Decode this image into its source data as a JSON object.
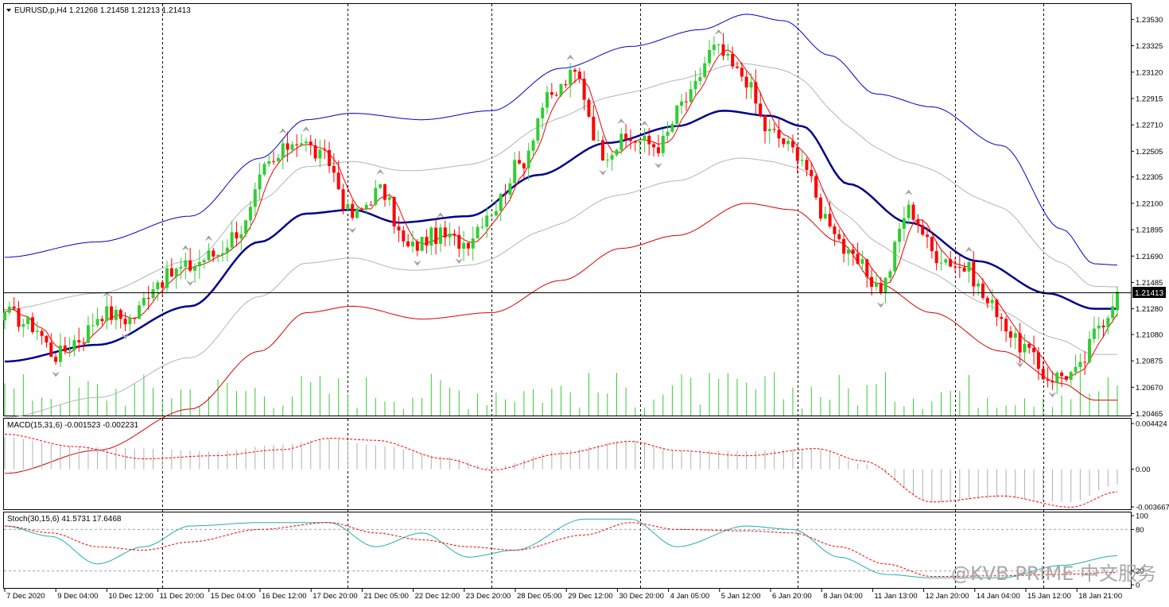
{
  "window": {
    "symbol_header": "EURUSD,p,H4  1.21268 1.21458 1.21213 1.21413",
    "macd_header": "MACD(15,31,6) -0.001523 -0.002231",
    "stoch_header": "Stoch(30,15,6) 41.5731 17.6468",
    "current_price_label": "1.21413",
    "watermark": "@KVB PRIME 中文服务"
  },
  "colors": {
    "bull_candle": "#32cd32",
    "bear_candle": "#ff0000",
    "ma_main": "#00008b",
    "band_upper": "#0000cd",
    "band_lower": "#dd0000",
    "band_inner": "#b4b4b4",
    "fast_ma": "#ee0000",
    "macd_signal": "#ff0000",
    "stoch_main": "#20b2aa",
    "stoch_signal": "#ff0000",
    "grid": "#000000"
  },
  "chart_data": [
    {
      "type": "candlestick",
      "symbol": "EURUSD,p",
      "timeframe": "H4",
      "last_bar": {
        "open": 1.21268,
        "high": 1.21458,
        "low": 1.21213,
        "close": 1.21413
      },
      "ylim": [
        1.2045,
        1.2365
      ],
      "y_ticks": [
        "1.23530",
        "1.23325",
        "1.23120",
        "1.22915",
        "1.22710",
        "1.22505",
        "1.22305",
        "1.22100",
        "1.21895",
        "1.21690",
        "1.21485",
        "1.21280",
        "1.21080",
        "1.20875",
        "1.20670",
        "1.20465"
      ],
      "x_labels": [
        "7 Dec 2020",
        "9 Dec 04:00",
        "10 Dec 12:00",
        "11 Dec 20:00",
        "15 Dec 04:00",
        "16 Dec 12:00",
        "17 Dec 20:00",
        "21 Dec 05:00",
        "22 Dec 12:00",
        "23 Dec 20:00",
        "28 Dec 05:00",
        "29 Dec 12:00",
        "30 Dec 20:00",
        "4 Jan 05:00",
        "5 Jan 12:00",
        "6 Jan 20:00",
        "8 Jan 04:00",
        "11 Jan 13:00",
        "12 Jan 20:00",
        "14 Jan 04:00",
        "15 Jan 12:00",
        "18 Jan 21:00"
      ],
      "close_anchors": [
        [
          0,
          1.2125
        ],
        [
          6,
          1.2115
        ],
        [
          11,
          1.2092
        ],
        [
          16,
          1.2105
        ],
        [
          21,
          1.2125
        ],
        [
          27,
          1.212
        ],
        [
          33,
          1.215
        ],
        [
          39,
          1.216
        ],
        [
          45,
          1.217
        ],
        [
          51,
          1.219
        ],
        [
          57,
          1.224
        ],
        [
          63,
          1.226
        ],
        [
          69,
          1.2245
        ],
        [
          75,
          1.22
        ],
        [
          81,
          1.222
        ],
        [
          87,
          1.2175
        ],
        [
          93,
          1.2185
        ],
        [
          99,
          1.218
        ],
        [
          105,
          1.2205
        ],
        [
          111,
          1.224
        ],
        [
          117,
          1.229
        ],
        [
          123,
          1.231
        ],
        [
          129,
          1.225
        ],
        [
          135,
          1.226
        ],
        [
          141,
          1.2255
        ],
        [
          147,
          1.229
        ],
        [
          153,
          1.233
        ],
        [
          159,
          1.231
        ],
        [
          165,
          1.2265
        ],
        [
          171,
          1.225
        ],
        [
          177,
          1.22
        ],
        [
          183,
          1.2165
        ],
        [
          189,
          1.2145
        ],
        [
          195,
          1.2205
        ],
        [
          201,
          1.217
        ],
        [
          207,
          1.216
        ],
        [
          213,
          1.213
        ],
        [
          219,
          1.21
        ],
        [
          225,
          1.2075
        ],
        [
          231,
          1.2078
        ],
        [
          237,
          1.212
        ],
        [
          240,
          1.21413
        ]
      ],
      "ma_main_anchors": [
        [
          0,
          1.2087
        ],
        [
          20,
          1.21
        ],
        [
          40,
          1.213
        ],
        [
          55,
          1.218
        ],
        [
          65,
          1.2202
        ],
        [
          75,
          1.2205
        ],
        [
          85,
          1.2195
        ],
        [
          100,
          1.22
        ],
        [
          115,
          1.2232
        ],
        [
          130,
          1.2257
        ],
        [
          145,
          1.227
        ],
        [
          155,
          1.2282
        ],
        [
          165,
          1.2278
        ],
        [
          172,
          1.227
        ],
        [
          182,
          1.2225
        ],
        [
          195,
          1.2195
        ],
        [
          210,
          1.2165
        ],
        [
          225,
          1.214
        ],
        [
          235,
          1.2128
        ],
        [
          240,
          1.2128
        ]
      ],
      "band_upper_anchors": [
        [
          0,
          1.2168
        ],
        [
          20,
          1.218
        ],
        [
          40,
          1.22
        ],
        [
          55,
          1.2245
        ],
        [
          65,
          1.2275
        ],
        [
          75,
          1.228
        ],
        [
          90,
          1.2275
        ],
        [
          105,
          1.2282
        ],
        [
          120,
          1.2315
        ],
        [
          135,
          1.2332
        ],
        [
          150,
          1.2345
        ],
        [
          160,
          1.2357
        ],
        [
          168,
          1.2352
        ],
        [
          178,
          1.2325
        ],
        [
          188,
          1.2295
        ],
        [
          200,
          1.2285
        ],
        [
          215,
          1.2255
        ],
        [
          228,
          1.219
        ],
        [
          235,
          1.2163
        ],
        [
          240,
          1.2162
        ]
      ],
      "band_lower_anchors": [
        [
          0,
          1.2
        ],
        [
          20,
          1.2018
        ],
        [
          40,
          1.205
        ],
        [
          55,
          1.2095
        ],
        [
          65,
          1.2125
        ],
        [
          75,
          1.213
        ],
        [
          90,
          1.212
        ],
        [
          105,
          1.2125
        ],
        [
          120,
          1.215
        ],
        [
          133,
          1.2175
        ],
        [
          145,
          1.2185
        ],
        [
          160,
          1.221
        ],
        [
          170,
          1.2205
        ],
        [
          180,
          1.218
        ],
        [
          188,
          1.2148
        ],
        [
          200,
          1.2125
        ],
        [
          215,
          1.2095
        ],
        [
          228,
          1.207
        ],
        [
          235,
          1.2057
        ],
        [
          240,
          1.2057
        ]
      ],
      "fast_ma_offset": 0.0
    },
    {
      "type": "histogram",
      "indicator": "MACD",
      "params": "15,31,6",
      "main": -0.001523,
      "signal": -0.002231,
      "ylim": [
        -0.0039,
        0.0049
      ],
      "y_ticks": [
        "0.004424",
        "0.00",
        "-0.003667"
      ],
      "main_anchors": [
        [
          0,
          0.0031
        ],
        [
          15,
          0.0022
        ],
        [
          30,
          0.002
        ],
        [
          45,
          0.0017
        ],
        [
          60,
          0.0024
        ],
        [
          70,
          0.003
        ],
        [
          80,
          0.0023
        ],
        [
          95,
          0.0012
        ],
        [
          105,
          0.0002
        ],
        [
          120,
          0.0018
        ],
        [
          135,
          0.0028
        ],
        [
          145,
          0.0018
        ],
        [
          160,
          0.0018
        ],
        [
          175,
          0.002
        ],
        [
          185,
          0.0005
        ],
        [
          200,
          -0.0032
        ],
        [
          215,
          -0.0028
        ],
        [
          230,
          -0.0032
        ],
        [
          240,
          -0.0015
        ]
      ],
      "signal_anchors": [
        [
          0,
          0.0034
        ],
        [
          15,
          0.0022
        ],
        [
          30,
          0.001
        ],
        [
          45,
          0.0013
        ],
        [
          60,
          0.0019
        ],
        [
          70,
          0.003
        ],
        [
          80,
          0.0028
        ],
        [
          95,
          0.001
        ],
        [
          105,
          -0.0001
        ],
        [
          120,
          0.0015
        ],
        [
          135,
          0.0027
        ],
        [
          145,
          0.0018
        ],
        [
          160,
          0.0013
        ],
        [
          175,
          0.002
        ],
        [
          185,
          0.0008
        ],
        [
          200,
          -0.0032
        ],
        [
          215,
          -0.0026
        ],
        [
          230,
          -0.0037
        ],
        [
          240,
          -0.0022
        ]
      ]
    },
    {
      "type": "line",
      "indicator": "Stochastic",
      "params": "30,15,6",
      "main": 41.5731,
      "signal": 17.6468,
      "ylim": [
        0,
        100
      ],
      "y_ticks": [
        "100",
        "80",
        "20",
        "0"
      ],
      "levels": [
        80,
        20
      ],
      "main_anchors": [
        [
          0,
          85
        ],
        [
          10,
          70
        ],
        [
          20,
          30
        ],
        [
          30,
          55
        ],
        [
          40,
          85
        ],
        [
          55,
          90
        ],
        [
          70,
          90
        ],
        [
          80,
          55
        ],
        [
          90,
          75
        ],
        [
          100,
          40
        ],
        [
          110,
          50
        ],
        [
          125,
          95
        ],
        [
          135,
          95
        ],
        [
          145,
          55
        ],
        [
          160,
          85
        ],
        [
          170,
          80
        ],
        [
          180,
          40
        ],
        [
          190,
          15
        ],
        [
          200,
          10
        ],
        [
          215,
          10
        ],
        [
          228,
          28
        ],
        [
          240,
          42
        ]
      ],
      "signal_anchors": [
        [
          0,
          85
        ],
        [
          10,
          75
        ],
        [
          20,
          55
        ],
        [
          30,
          50
        ],
        [
          40,
          62
        ],
        [
          55,
          80
        ],
        [
          70,
          90
        ],
        [
          80,
          75
        ],
        [
          90,
          65
        ],
        [
          100,
          55
        ],
        [
          110,
          50
        ],
        [
          125,
          72
        ],
        [
          135,
          90
        ],
        [
          145,
          80
        ],
        [
          160,
          78
        ],
        [
          170,
          75
        ],
        [
          180,
          55
        ],
        [
          190,
          30
        ],
        [
          200,
          12
        ],
        [
          215,
          13
        ],
        [
          228,
          15
        ],
        [
          240,
          18
        ]
      ]
    }
  ]
}
